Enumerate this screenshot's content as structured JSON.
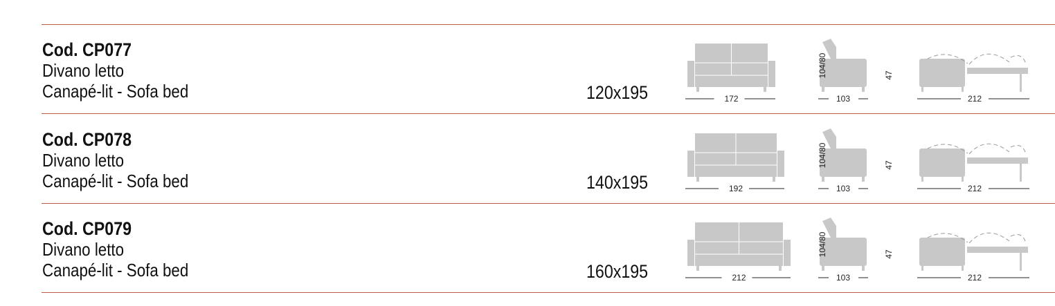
{
  "products": [
    {
      "code": "Cod. CP077",
      "name_it": "Divano letto",
      "name_fr_en": "Canapé-lit - Sofa bed",
      "bed_size": "120x195",
      "front_width": "172",
      "depth": "103",
      "height": "104/80",
      "seat_height": "47",
      "open_length": "212"
    },
    {
      "code": "Cod. CP078",
      "name_it": "Divano letto",
      "name_fr_en": "Canapé-lit - Sofa bed",
      "bed_size": "140x195",
      "front_width": "192",
      "depth": "103",
      "height": "104/80",
      "seat_height": "47",
      "open_length": "212"
    },
    {
      "code": "Cod. CP079",
      "name_it": "Divano letto",
      "name_fr_en": "Canapé-lit - Sofa bed",
      "bed_size": "160x195",
      "front_width": "212",
      "depth": "103",
      "height": "104/80",
      "seat_height": "47",
      "open_length": "212"
    }
  ],
  "colors": {
    "separator": "#c25a4a",
    "drawing_fill": "#c8c8c8"
  }
}
